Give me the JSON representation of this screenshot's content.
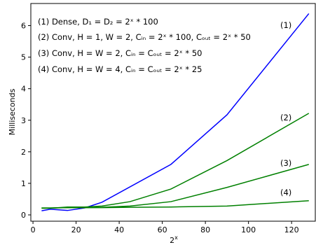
{
  "chart_data": {
    "type": "line",
    "xlabel": "2^x",
    "ylabel": "Milliseconds",
    "xlim": [
      -1,
      131
    ],
    "ylim": [
      -0.2,
      6.7
    ],
    "xticks": [
      0,
      20,
      40,
      60,
      80,
      100,
      120
    ],
    "yticks": [
      0,
      1,
      2,
      3,
      4,
      5,
      6
    ],
    "grid": false,
    "legend_position": "top-left",
    "annotations": [
      "(1) Dense, D₁ = D₂ = 2ˣ * 100",
      "(2) Conv, H = 1, W = 2, Cᵢₙ = 2ˣ * 100, Cₒᵤₜ = 2ˣ * 50",
      "(3) Conv, H = W = 2, Cᵢₙ = Cₒᵤₜ = 2ˣ * 50",
      "(4) Conv, H = W = 4, Cᵢₙ = Cₒᵤₜ = 2ˣ * 25"
    ],
    "series": [
      {
        "name": "(1)",
        "color": "#0000ff",
        "x": [
          4,
          8,
          16,
          24,
          32,
          64,
          90,
          128
        ],
        "y": [
          0.13,
          0.18,
          0.14,
          0.22,
          0.4,
          1.6,
          3.17,
          6.38
        ]
      },
      {
        "name": "(2)",
        "color": "#008000",
        "x": [
          4,
          8,
          16,
          24,
          32,
          45,
          64,
          90,
          128
        ],
        "y": [
          0.21,
          0.21,
          0.25,
          0.25,
          0.28,
          0.42,
          0.82,
          1.72,
          3.22
        ]
      },
      {
        "name": "(3)",
        "color": "#008000",
        "x": [
          4,
          8,
          16,
          24,
          32,
          45,
          64,
          90,
          128
        ],
        "y": [
          0.22,
          0.22,
          0.23,
          0.23,
          0.24,
          0.28,
          0.42,
          0.87,
          1.6
        ]
      },
      {
        "name": "(4)",
        "color": "#008000",
        "x": [
          4,
          8,
          16,
          24,
          32,
          45,
          64,
          90,
          128
        ],
        "y": [
          0.22,
          0.22,
          0.23,
          0.23,
          0.23,
          0.24,
          0.25,
          0.28,
          0.45
        ]
      }
    ]
  }
}
